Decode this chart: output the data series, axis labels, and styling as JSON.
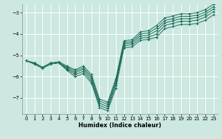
{
  "xlabel": "Humidex (Indice chaleur)",
  "bg_color": "#cce8e0",
  "line_color": "#1a6b5a",
  "grid_color": "#ffffff",
  "xlim": [
    -0.5,
    23.5
  ],
  "ylim": [
    -7.75,
    -2.6
  ],
  "yticks": [
    -7,
    -6,
    -5,
    -4,
    -3
  ],
  "xticks": [
    0,
    1,
    2,
    3,
    4,
    5,
    6,
    7,
    8,
    9,
    10,
    11,
    12,
    13,
    14,
    15,
    16,
    17,
    18,
    19,
    20,
    21,
    22,
    23
  ],
  "lines": [
    {
      "pts": [
        [
          0,
          -5.25
        ],
        [
          1,
          -5.4
        ],
        [
          2,
          -5.6
        ],
        [
          3,
          -5.4
        ],
        [
          4,
          -5.35
        ],
        [
          5,
          -5.7
        ],
        [
          6,
          -6.0
        ],
        [
          7,
          -5.85
        ],
        [
          8,
          -6.3
        ],
        [
          9,
          -7.45
        ],
        [
          10,
          -7.6
        ],
        [
          11,
          -6.55
        ],
        [
          12,
          -4.65
        ],
        [
          13,
          -4.6
        ],
        [
          14,
          -4.3
        ],
        [
          15,
          -4.25
        ],
        [
          16,
          -4.15
        ],
        [
          17,
          -3.75
        ],
        [
          18,
          -3.65
        ],
        [
          19,
          -3.55
        ],
        [
          20,
          -3.55
        ],
        [
          21,
          -3.5
        ],
        [
          22,
          -3.35
        ],
        [
          23,
          -3.1
        ]
      ]
    },
    {
      "pts": [
        [
          0,
          -5.25
        ],
        [
          1,
          -5.4
        ],
        [
          2,
          -5.6
        ],
        [
          3,
          -5.4
        ],
        [
          4,
          -5.35
        ],
        [
          5,
          -5.65
        ],
        [
          6,
          -5.9
        ],
        [
          7,
          -5.75
        ],
        [
          8,
          -6.2
        ],
        [
          9,
          -7.35
        ],
        [
          10,
          -7.5
        ],
        [
          11,
          -6.4
        ],
        [
          12,
          -4.55
        ],
        [
          13,
          -4.5
        ],
        [
          14,
          -4.2
        ],
        [
          15,
          -4.15
        ],
        [
          16,
          -4.0
        ],
        [
          17,
          -3.6
        ],
        [
          18,
          -3.5
        ],
        [
          19,
          -3.4
        ],
        [
          20,
          -3.4
        ],
        [
          21,
          -3.35
        ],
        [
          22,
          -3.2
        ],
        [
          23,
          -2.95
        ]
      ]
    },
    {
      "pts": [
        [
          0,
          -5.25
        ],
        [
          1,
          -5.4
        ],
        [
          2,
          -5.6
        ],
        [
          3,
          -5.4
        ],
        [
          4,
          -5.35
        ],
        [
          5,
          -5.6
        ],
        [
          6,
          -5.82
        ],
        [
          7,
          -5.65
        ],
        [
          8,
          -6.1
        ],
        [
          9,
          -7.25
        ],
        [
          10,
          -7.4
        ],
        [
          11,
          -6.3
        ],
        [
          12,
          -4.47
        ],
        [
          13,
          -4.42
        ],
        [
          14,
          -4.1
        ],
        [
          15,
          -4.05
        ],
        [
          16,
          -3.85
        ],
        [
          17,
          -3.48
        ],
        [
          18,
          -3.38
        ],
        [
          19,
          -3.28
        ],
        [
          20,
          -3.28
        ],
        [
          21,
          -3.23
        ],
        [
          22,
          -3.08
        ],
        [
          23,
          -2.83
        ]
      ]
    },
    {
      "pts": [
        [
          0,
          -5.25
        ],
        [
          1,
          -5.4
        ],
        [
          2,
          -5.6
        ],
        [
          3,
          -5.4
        ],
        [
          4,
          -5.35
        ],
        [
          5,
          -5.55
        ],
        [
          6,
          -5.75
        ],
        [
          7,
          -5.58
        ],
        [
          8,
          -6.0
        ],
        [
          9,
          -7.15
        ],
        [
          10,
          -7.3
        ],
        [
          11,
          -6.2
        ],
        [
          12,
          -4.4
        ],
        [
          13,
          -4.35
        ],
        [
          14,
          -4.0
        ],
        [
          15,
          -3.95
        ],
        [
          16,
          -3.72
        ],
        [
          17,
          -3.37
        ],
        [
          18,
          -3.27
        ],
        [
          19,
          -3.17
        ],
        [
          20,
          -3.17
        ],
        [
          21,
          -3.12
        ],
        [
          22,
          -2.97
        ],
        [
          23,
          -2.72
        ]
      ]
    },
    {
      "pts": [
        [
          0,
          -5.25
        ],
        [
          1,
          -5.35
        ],
        [
          2,
          -5.55
        ],
        [
          3,
          -5.35
        ],
        [
          4,
          -5.3
        ],
        [
          5,
          -5.5
        ],
        [
          6,
          -5.68
        ],
        [
          7,
          -5.5
        ],
        [
          8,
          -5.9
        ],
        [
          9,
          -7.05
        ],
        [
          10,
          -7.2
        ],
        [
          11,
          -6.1
        ],
        [
          12,
          -4.32
        ],
        [
          13,
          -4.27
        ],
        [
          14,
          -3.9
        ],
        [
          15,
          -3.85
        ],
        [
          16,
          -3.6
        ],
        [
          17,
          -3.25
        ],
        [
          18,
          -3.15
        ],
        [
          19,
          -3.05
        ],
        [
          20,
          -3.05
        ],
        [
          21,
          -3.0
        ],
        [
          22,
          -2.85
        ],
        [
          23,
          -2.6
        ]
      ]
    }
  ]
}
